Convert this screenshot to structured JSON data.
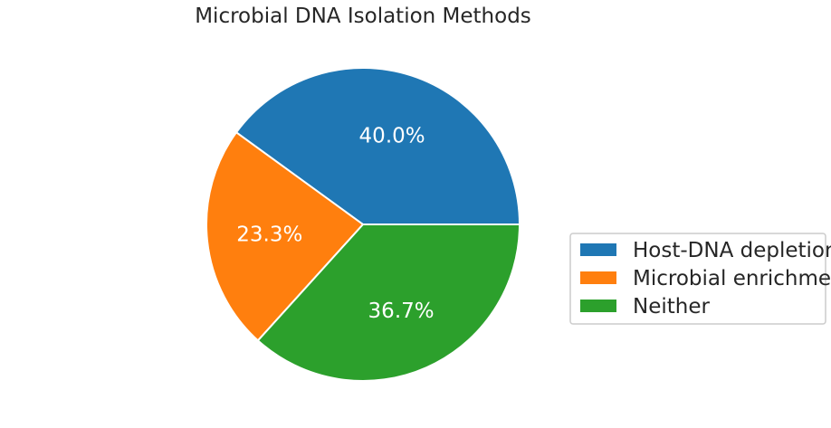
{
  "chart_data": {
    "type": "pie",
    "title": "Microbial DNA Isolation Methods",
    "categories": [
      "Host-DNA depletion",
      "Microbial enrichment",
      "Neither"
    ],
    "values": [
      40.0,
      23.3,
      36.7
    ],
    "value_labels": [
      "40.0%",
      "23.3%",
      "36.7%"
    ],
    "colors": [
      "#1f77b4",
      "#ff7f0e",
      "#2ca02c"
    ],
    "start_angle_deg": 0,
    "direction": "counterclockwise",
    "legend_position": "center-right",
    "legend": [
      "Host-DNA depletion",
      "Microbial enrichment",
      "Neither"
    ]
  }
}
